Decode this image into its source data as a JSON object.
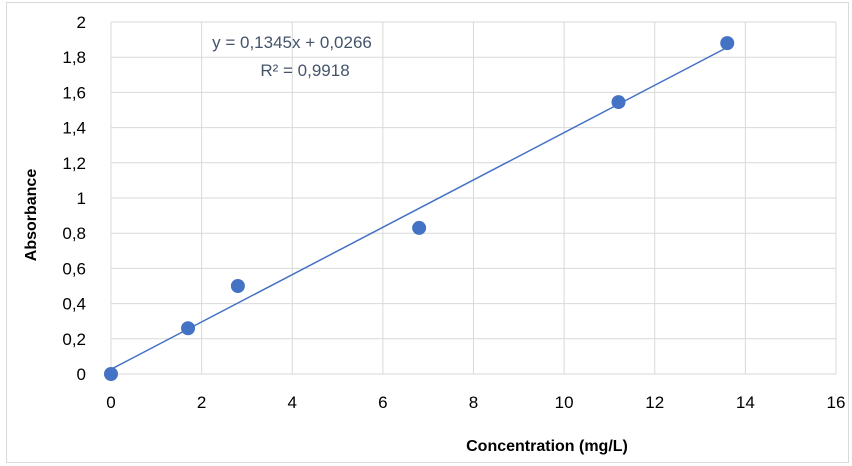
{
  "chart_data": {
    "type": "scatter",
    "title": "",
    "xlabel": "Concentration (mg/L)",
    "ylabel": "Absorbance",
    "xlim": [
      0,
      16
    ],
    "ylim": [
      0,
      2
    ],
    "x_ticks": [
      0,
      2,
      4,
      6,
      8,
      10,
      12,
      14,
      16
    ],
    "y_ticks": [
      0,
      0.2,
      0.4,
      0.6,
      0.8,
      1,
      1.2,
      1.4,
      1.6,
      1.8,
      2
    ],
    "x_tick_labels": [
      "0",
      "2",
      "4",
      "6",
      "8",
      "10",
      "12",
      "14",
      "16"
    ],
    "y_tick_labels": [
      "0",
      "0,2",
      "0,4",
      "0,6",
      "0,8",
      "1",
      "1,2",
      "1,4",
      "1,6",
      "1,8",
      "2"
    ],
    "grid": true,
    "legend": "none",
    "series": [
      {
        "x": [
          0,
          1.7,
          2.8,
          6.8,
          11.2,
          13.6
        ],
        "y": [
          0,
          0.26,
          0.5,
          0.83,
          1.545,
          1.88
        ],
        "color": "#4472c4"
      }
    ],
    "trendline": {
      "slope": 0.1345,
      "intercept": 0.0266,
      "x_range": [
        0,
        13.6
      ],
      "color": "#4472c4",
      "equation_label": "y = 0,1345x + 0,0266",
      "r2_label": "R² = 0,9918"
    }
  }
}
